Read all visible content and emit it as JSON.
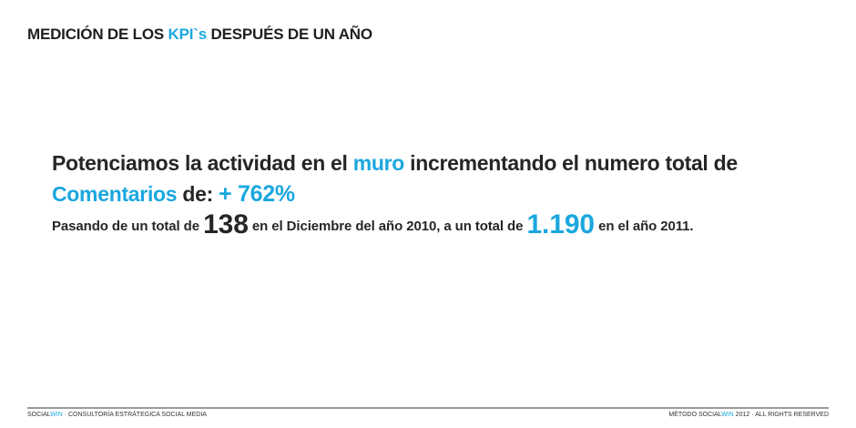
{
  "header": {
    "title_pre": "MEDICIÓN DE LOS ",
    "title_accent": "KPI`s",
    "title_post": " DESPUÉS DE UN AÑO"
  },
  "main": {
    "line1": {
      "a": "Potenciamos la actividad en el ",
      "b": "muro",
      "c": " incrementando el numero total de"
    },
    "line2": {
      "a": "Comentarios",
      "b": " de: ",
      "c": "+ 762%"
    },
    "line3": {
      "a": "Pasando de un total de ",
      "n1": "138",
      "b": " en el Diciembre del año 2010, a un total de ",
      "n2": "1.190",
      "c": " en el año 2011."
    }
  },
  "footer": {
    "left_pre": "SOCIAL",
    "left_accent": "WIN",
    "left_post": " · CONSULTORÍA ESTRÁTEGICA SOCIAL MEDIA",
    "right_pre": "MÉTODO SOCIAL",
    "right_accent": "WIN",
    "right_post": " 2012 · ALL RIGHTS RESERVED"
  },
  "colors": {
    "accent": "#1aa7df",
    "text": "#262626",
    "rule": "#9a9a9a"
  }
}
